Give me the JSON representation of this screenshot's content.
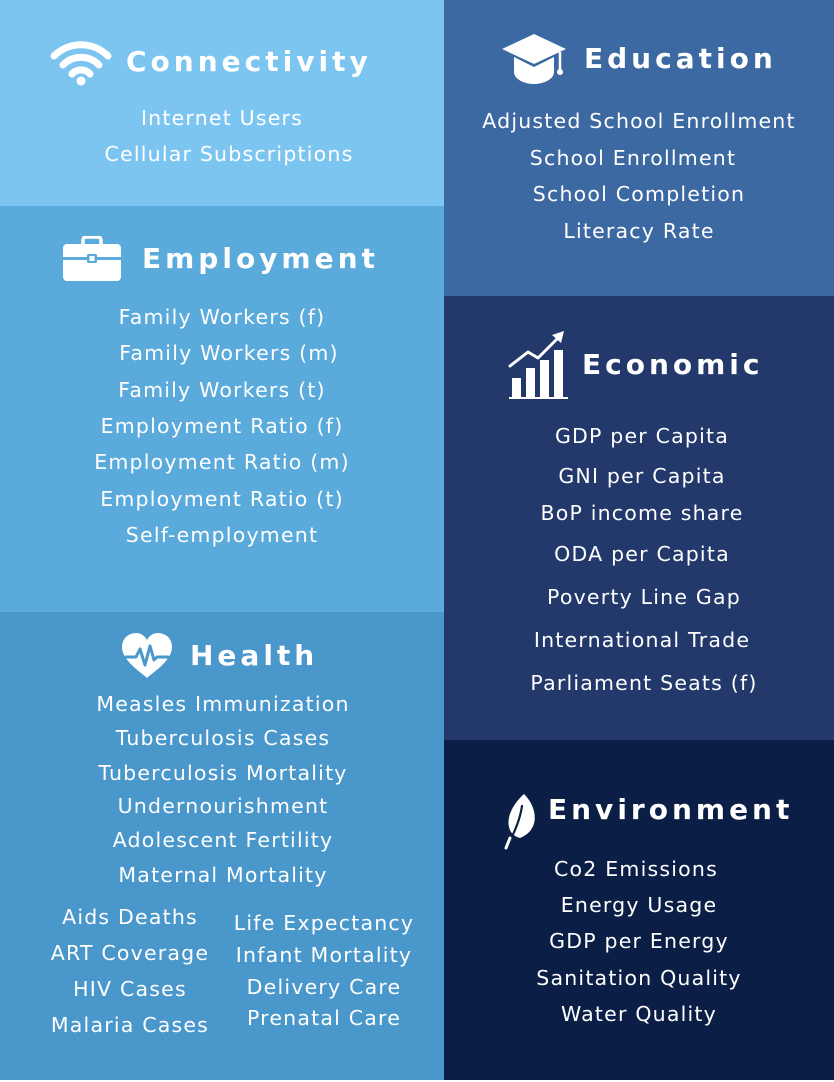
{
  "sections": {
    "connectivity": {
      "title": "Connectivity",
      "icon": "wifi-icon",
      "items": [
        "Internet Users",
        "Cellular Subscriptions"
      ]
    },
    "employment": {
      "title": "Employment",
      "icon": "briefcase-icon",
      "items": [
        "Family Workers (f)",
        "Family Workers (m)",
        "Family Workers (t)",
        "Employment Ratio (f)",
        "Employment Ratio (m)",
        "Employment Ratio (t)",
        "Self-employment"
      ]
    },
    "health": {
      "title": "Health",
      "icon": "heart-pulse-icon",
      "items": [
        "Measles Immunization",
        "Tuberculosis Cases",
        "Tuberculosis Mortality",
        "Undernourishment",
        "Adolescent Fertility",
        "Maternal Mortality"
      ],
      "left_column": [
        "Aids Deaths",
        "ART Coverage",
        "HIV Cases",
        "Malaria Cases"
      ],
      "right_column": [
        "Life Expectancy",
        "Infant Mortality",
        "Delivery Care",
        "Prenatal Care"
      ]
    },
    "education": {
      "title": "Education",
      "icon": "graduation-cap-icon",
      "items": [
        "Adjusted School Enrollment",
        "School Enrollment",
        "School Completion",
        "Literacy Rate"
      ]
    },
    "economic": {
      "title": "Economic",
      "icon": "bar-chart-growth-icon",
      "items": [
        "GDP per Capita",
        "GNI per Capita",
        "BoP income share",
        "ODA per Capita",
        "Poverty Line Gap",
        "International Trade",
        "Parliament Seats (f)"
      ]
    },
    "environment": {
      "title": "Environment",
      "icon": "leaf-icon",
      "items": [
        "Co2 Emissions",
        "Energy Usage",
        "GDP per Energy",
        "Sanitation Quality",
        "Water Quality"
      ]
    }
  },
  "colors": {
    "connectivity": "#7dc5f1",
    "employment": "#5aaadc",
    "health": "#4a97cc",
    "education": "#3d69a2",
    "economic": "#23386b",
    "environment": "#0b1e45",
    "text": "#ffffff"
  }
}
